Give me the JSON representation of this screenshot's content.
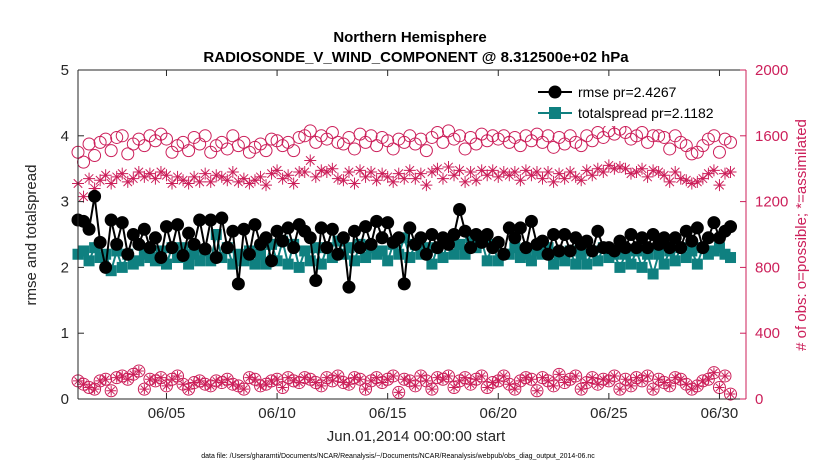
{
  "chart_data": {
    "type": "line",
    "title_line1": "Northern Hemisphere",
    "title_line2": "RADIOSONDE_V_WIND_COMPONENT @ 8.312500e+02 hPa",
    "xlabel": "Jun.01,2014 00:00:00 start",
    "ylabel_left": "rmse and totalspread",
    "ylabel_right": "# of obs: o=possible; *=assimilated",
    "footnote": "data file: /Users/gharamti/Documents/NCAR/Reanalysis/~/Documents/NCAR/Reanalysis/webpub/obs_diag_output_2014-06.nc",
    "x_day_range": [
      1,
      31.2
    ],
    "x_tick_days": [
      5,
      10,
      15,
      20,
      25,
      30
    ],
    "x_tick_labels": [
      "06/05",
      "06/10",
      "06/15",
      "06/20",
      "06/25",
      "06/30"
    ],
    "ylim_left": [
      0,
      5
    ],
    "yticks_left": [
      "0",
      "1",
      "2",
      "3",
      "4",
      "5"
    ],
    "ylim_right": [
      0,
      2000
    ],
    "yticks_right": [
      "0",
      "400",
      "800",
      "1200",
      "1600",
      "2000"
    ],
    "legend": [
      {
        "name": "rmse pr=2.4267",
        "color": "#000000"
      },
      {
        "name": "totalspread pr=2.1182",
        "color": "#0f8080"
      }
    ],
    "colors": {
      "rmse": "#000000",
      "spread": "#0f8080",
      "obs": "#cc1f5a",
      "axis": "#262626"
    },
    "series_x_days": [
      1.0,
      1.25,
      1.5,
      1.75,
      2.0,
      2.25,
      2.5,
      2.75,
      3.0,
      3.25,
      3.5,
      3.75,
      4.0,
      4.25,
      4.5,
      4.75,
      5.0,
      5.25,
      5.5,
      5.75,
      6.0,
      6.25,
      6.5,
      6.75,
      7.0,
      7.25,
      7.5,
      7.75,
      8.0,
      8.25,
      8.5,
      8.75,
      9.0,
      9.25,
      9.5,
      9.75,
      10.0,
      10.25,
      10.5,
      10.75,
      11.0,
      11.25,
      11.5,
      11.75,
      12.0,
      12.25,
      12.5,
      12.75,
      13.0,
      13.25,
      13.5,
      13.75,
      14.0,
      14.25,
      14.5,
      14.75,
      15.0,
      15.25,
      15.5,
      15.75,
      16.0,
      16.25,
      16.5,
      16.75,
      17.0,
      17.25,
      17.5,
      17.75,
      18.0,
      18.25,
      18.5,
      18.75,
      19.0,
      19.25,
      19.5,
      19.75,
      20.0,
      20.25,
      20.5,
      20.75,
      21.0,
      21.25,
      21.5,
      21.75,
      22.0,
      22.25,
      22.5,
      22.75,
      23.0,
      23.25,
      23.5,
      23.75,
      24.0,
      24.25,
      24.5,
      24.75,
      25.0,
      25.25,
      25.5,
      25.75,
      26.0,
      26.25,
      26.5,
      26.75,
      27.0,
      27.25,
      27.5,
      27.75,
      28.0,
      28.25,
      28.5,
      28.75,
      29.0,
      29.25,
      29.5,
      29.75,
      30.0,
      30.25,
      30.5,
      30.75,
      31.0
    ],
    "rmse": [
      2.72,
      2.7,
      2.58,
      3.08,
      2.38,
      2.0,
      2.72,
      2.35,
      2.68,
      2.2,
      2.5,
      2.35,
      2.58,
      2.3,
      2.45,
      2.15,
      2.62,
      2.3,
      2.65,
      2.18,
      2.52,
      2.35,
      2.72,
      2.28,
      2.72,
      2.15,
      2.75,
      2.3,
      2.55,
      1.75,
      2.58,
      2.2,
      2.65,
      2.35,
      2.45,
      2.1,
      2.55,
      2.4,
      2.6,
      2.3,
      2.65,
      2.55,
      2.45,
      1.8,
      2.6,
      2.3,
      2.58,
      2.2,
      2.45,
      1.7,
      2.55,
      2.3,
      2.62,
      2.35,
      2.7,
      2.45,
      2.68,
      2.38,
      2.45,
      1.75,
      2.6,
      2.35,
      2.45,
      2.2,
      2.5,
      2.3,
      2.45,
      2.35,
      2.5,
      2.88,
      2.55,
      2.3,
      2.5,
      2.38,
      2.5,
      2.3,
      2.38,
      2.2,
      2.6,
      2.45,
      2.6,
      2.3,
      2.7,
      2.35,
      2.4,
      2.2,
      2.5,
      2.25,
      2.5,
      2.25,
      2.45,
      2.35,
      2.4,
      2.25,
      2.55,
      2.3,
      2.3,
      2.25,
      2.4,
      2.3,
      2.5,
      2.3,
      2.45,
      2.3,
      2.5,
      2.35,
      2.45,
      2.3,
      2.45,
      2.3,
      2.55,
      2.4,
      2.6,
      2.3,
      2.45,
      2.68,
      2.45,
      2.55,
      2.62
    ],
    "spread": [
      2.2,
      2.25,
      2.1,
      2.3,
      2.15,
      2.2,
      1.95,
      2.25,
      2.0,
      2.2,
      2.05,
      2.1,
      2.2,
      2.15,
      2.1,
      2.25,
      2.05,
      2.3,
      2.15,
      2.3,
      2.05,
      2.2,
      2.1,
      2.25,
      2.1,
      2.5,
      2.15,
      2.3,
      2.05,
      2.2,
      2.1,
      2.25,
      2.05,
      2.2,
      2.05,
      2.35,
      2.1,
      2.4,
      2.05,
      2.35,
      2.0,
      2.25,
      2.1,
      2.3,
      2.05,
      2.3,
      2.15,
      2.4,
      2.2,
      2.3,
      2.1,
      2.35,
      2.15,
      2.3,
      2.2,
      2.25,
      2.1,
      2.35,
      2.2,
      2.45,
      2.15,
      2.35,
      2.2,
      2.3,
      2.05,
      2.3,
      2.15,
      2.4,
      2.2,
      2.35,
      2.2,
      2.45,
      2.3,
      2.4,
      2.1,
      2.35,
      2.1,
      2.2,
      2.2,
      2.3,
      2.15,
      2.2,
      2.1,
      2.25,
      2.2,
      2.3,
      2.05,
      2.2,
      2.1,
      2.25,
      2.05,
      2.2,
      2.05,
      2.25,
      2.1,
      2.3,
      2.15,
      2.2,
      2.0,
      2.2,
      2.05,
      2.25,
      2.0,
      2.2,
      1.9,
      2.2,
      2.05,
      2.25,
      2.1,
      2.3,
      2.15,
      2.25,
      2.05,
      2.3,
      2.2,
      2.25,
      2.3,
      2.2,
      2.15
    ],
    "obs_possible_main": [
      1500,
      1440,
      1550,
      1480,
      1560,
      1580,
      1510,
      1590,
      1600,
      1490,
      1550,
      1580,
      1540,
      1600,
      1570,
      1610,
      1580,
      1500,
      1540,
      1560,
      1510,
      1590,
      1550,
      1600,
      1500,
      1540,
      1560,
      1520,
      1600,
      1540,
      1560,
      1500,
      1530,
      1550,
      1510,
      1580,
      1570,
      1540,
      1560,
      1510,
      1590,
      1600,
      1630,
      1560,
      1600,
      1580,
      1620,
      1560,
      1550,
      1590,
      1520,
      1610,
      1560,
      1600,
      1540,
      1590,
      1570,
      1520,
      1580,
      1560,
      1600,
      1550,
      1580,
      1510,
      1590,
      1620,
      1560,
      1630,
      1580,
      1600,
      1520,
      1590,
      1550,
      1610,
      1570,
      1600,
      1580,
      1600,
      1560,
      1590,
      1540,
      1600,
      1570,
      1610,
      1560,
      1600,
      1530,
      1590,
      1550,
      1600,
      1560,
      1540,
      1600,
      1570,
      1620,
      1590,
      1630,
      1610,
      1640,
      1620,
      1580,
      1600,
      1620,
      1560,
      1600,
      1600,
      1590,
      1520,
      1600,
      1560,
      1540,
      1490,
      1500,
      1540,
      1580,
      1600,
      1500,
      1580,
      1560
    ],
    "obs_assim_main": [
      1310,
      1230,
      1340,
      1280,
      1330,
      1360,
      1310,
      1350,
      1370,
      1320,
      1340,
      1380,
      1350,
      1370,
      1340,
      1380,
      1360,
      1310,
      1350,
      1330,
      1310,
      1350,
      1320,
      1370,
      1320,
      1360,
      1350,
      1330,
      1380,
      1320,
      1340,
      1310,
      1330,
      1350,
      1300,
      1370,
      1390,
      1340,
      1360,
      1310,
      1380,
      1380,
      1450,
      1350,
      1390,
      1380,
      1400,
      1340,
      1330,
      1380,
      1310,
      1390,
      1350,
      1380,
      1330,
      1370,
      1350,
      1320,
      1370,
      1340,
      1390,
      1340,
      1370,
      1300,
      1380,
      1400,
      1340,
      1410,
      1360,
      1390,
      1320,
      1380,
      1330,
      1390,
      1360,
      1390,
      1350,
      1380,
      1360,
      1380,
      1330,
      1390,
      1360,
      1380,
      1340,
      1380,
      1320,
      1370,
      1340,
      1380,
      1350,
      1330,
      1390,
      1360,
      1400,
      1380,
      1420,
      1400,
      1410,
      1400,
      1370,
      1380,
      1400,
      1350,
      1390,
      1380,
      1360,
      1320,
      1380,
      1340,
      1330,
      1310,
      1320,
      1340,
      1370,
      1390,
      1300,
      1370,
      1380
    ],
    "obs_possible_low": [
      110,
      90,
      70,
      60,
      110,
      120,
      50,
      130,
      140,
      120,
      150,
      170,
      60,
      120,
      110,
      130,
      80,
      120,
      140,
      90,
      60,
      100,
      110,
      90,
      80,
      110,
      100,
      120,
      90,
      80,
      60,
      130,
      120,
      80,
      90,
      110,
      120,
      70,
      130,
      110,
      100,
      130,
      120,
      100,
      80,
      130,
      110,
      140,
      100,
      90,
      130,
      120,
      60,
      110,
      130,
      100,
      120,
      140,
      40,
      120,
      110,
      80,
      140,
      110,
      60,
      130,
      120,
      140,
      70,
      110,
      130,
      90,
      120,
      140,
      70,
      100,
      110,
      140,
      90,
      60,
      110,
      130,
      120,
      50,
      130,
      110,
      80,
      150,
      100,
      120,
      140,
      60,
      100,
      130,
      90,
      120,
      110,
      140,
      60,
      120,
      80,
      130,
      110,
      140,
      60,
      120,
      100,
      80,
      130,
      120,
      90,
      60,
      80,
      110,
      120,
      160,
      70,
      140,
      30
    ]
  }
}
